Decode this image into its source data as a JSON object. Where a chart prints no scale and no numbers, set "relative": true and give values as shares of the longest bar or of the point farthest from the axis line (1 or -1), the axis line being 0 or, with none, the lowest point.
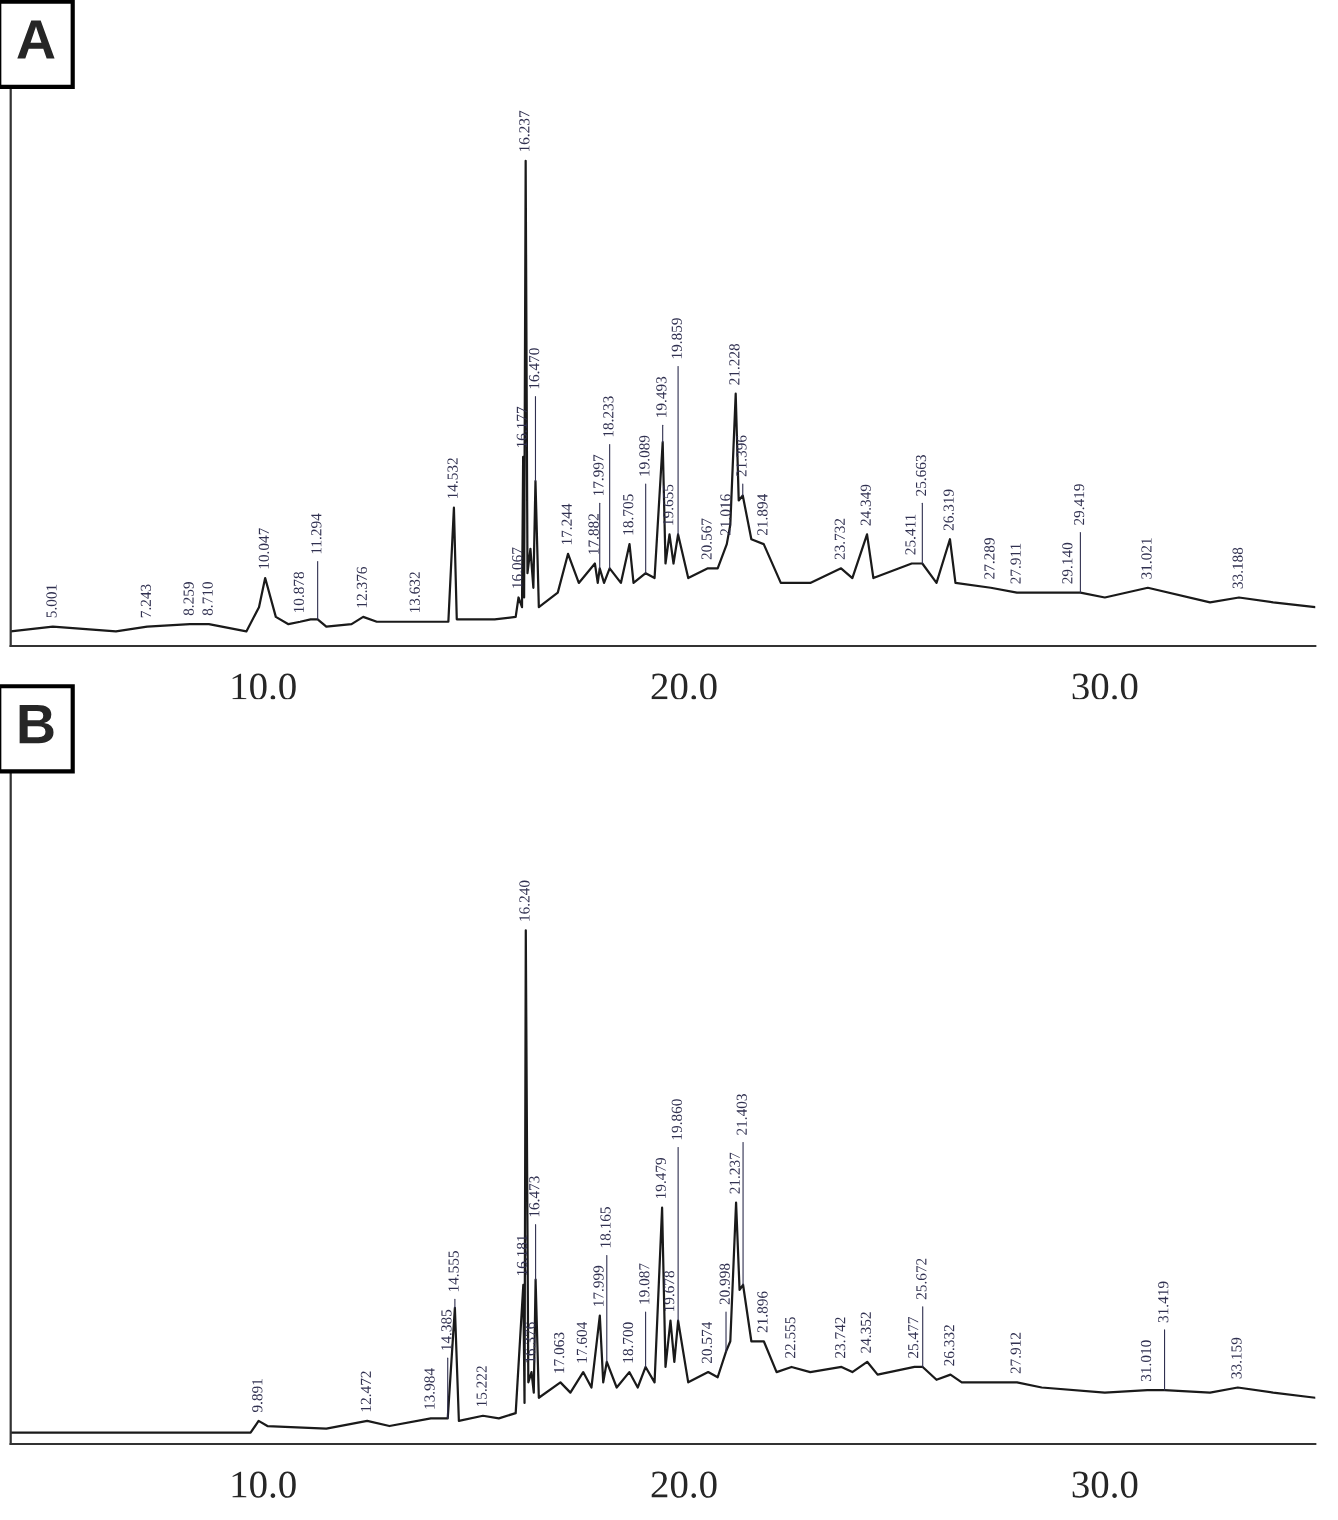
{
  "chart_data": [
    {
      "type": "line",
      "title": "A",
      "relative": true,
      "xlim": [
        4,
        35
      ],
      "xticks": [
        {
          "value": 10,
          "label": "10.0"
        },
        {
          "value": 20,
          "label": "20.0"
        },
        {
          "value": 30,
          "label": "30.0"
        }
      ],
      "series": [
        {
          "color": "#1a1a1a",
          "x": [
            4.0,
            5.001,
            6.5,
            7.243,
            8.259,
            8.71,
            9.6,
            9.9,
            10.047,
            10.3,
            10.6,
            10.878,
            11.127,
            11.294,
            11.5,
            12.1,
            12.376,
            12.7,
            13.632,
            14.4,
            14.532,
            14.6,
            15.5,
            16.0,
            16.067,
            16.15,
            16.177,
            16.2,
            16.237,
            16.28,
            16.35,
            16.42,
            16.47,
            16.55,
            17.0,
            17.244,
            17.5,
            17.882,
            17.95,
            17.997,
            18.1,
            18.233,
            18.5,
            18.705,
            18.8,
            19.089,
            19.3,
            19.493,
            19.56,
            19.655,
            19.75,
            19.859,
            20.1,
            20.567,
            20.8,
            21.016,
            21.1,
            21.228,
            21.3,
            21.396,
            21.6,
            21.894,
            22.3,
            23.0,
            23.732,
            24.0,
            24.349,
            24.5,
            25.411,
            25.663,
            26.0,
            26.319,
            26.45,
            27.289,
            27.911,
            28.5,
            29.14,
            29.419,
            30.0,
            31.021,
            32.5,
            33.188,
            34.0,
            35.0
          ],
          "values": [
            0.03,
            0.04,
            0.03,
            0.04,
            0.045,
            0.045,
            0.03,
            0.08,
            0.14,
            0.06,
            0.045,
            0.05,
            0.055,
            0.055,
            0.04,
            0.045,
            0.06,
            0.05,
            0.05,
            0.05,
            0.285,
            0.055,
            0.055,
            0.06,
            0.1,
            0.08,
            0.39,
            0.1,
            1.0,
            0.15,
            0.2,
            0.12,
            0.34,
            0.08,
            0.11,
            0.19,
            0.13,
            0.17,
            0.13,
            0.16,
            0.13,
            0.16,
            0.13,
            0.21,
            0.13,
            0.15,
            0.14,
            0.42,
            0.17,
            0.23,
            0.17,
            0.23,
            0.14,
            0.16,
            0.16,
            0.21,
            0.25,
            0.52,
            0.3,
            0.31,
            0.22,
            0.21,
            0.13,
            0.13,
            0.16,
            0.14,
            0.23,
            0.14,
            0.17,
            0.17,
            0.13,
            0.22,
            0.13,
            0.12,
            0.11,
            0.11,
            0.11,
            0.11,
            0.1,
            0.12,
            0.09,
            0.1,
            0.09,
            0.08
          ]
        }
      ],
      "annotations": [
        {
          "text": "5.001",
          "x": 5.001,
          "y": 0.04
        },
        {
          "text": "7.243",
          "x": 7.243,
          "y": 0.04
        },
        {
          "text": "8.259",
          "x": 8.259,
          "y": 0.045
        },
        {
          "text": "8.710",
          "x": 8.71,
          "y": 0.045
        },
        {
          "text": "10.047",
          "x": 10.047,
          "y": 0.14
        },
        {
          "text": "10.878",
          "x": 10.878,
          "y": 0.05
        },
        {
          "text": "11.294",
          "x": 11.294,
          "y": 0.055
        },
        {
          "text": "12.376",
          "x": 12.376,
          "y": 0.06
        },
        {
          "text": "13.632",
          "x": 13.632,
          "y": 0.05
        },
        {
          "text": "14.532",
          "x": 14.532,
          "y": 0.285
        },
        {
          "text": "16.067",
          "x": 16.067,
          "y": 0.1
        },
        {
          "text": "16.177",
          "x": 16.177,
          "y": 0.39
        },
        {
          "text": "16.237",
          "x": 16.237,
          "y": 1.0
        },
        {
          "text": "16.470",
          "x": 16.47,
          "y": 0.34
        },
        {
          "text": "17.244",
          "x": 17.244,
          "y": 0.19
        },
        {
          "text": "17.882",
          "x": 17.882,
          "y": 0.17
        },
        {
          "text": "17.997",
          "x": 17.997,
          "y": 0.16
        },
        {
          "text": "18.233",
          "x": 18.233,
          "y": 0.16
        },
        {
          "text": "18.705",
          "x": 18.705,
          "y": 0.21
        },
        {
          "text": "19.089",
          "x": 19.089,
          "y": 0.15
        },
        {
          "text": "19.493",
          "x": 19.493,
          "y": 0.42
        },
        {
          "text": "19.655",
          "x": 19.655,
          "y": 0.23
        },
        {
          "text": "19.859",
          "x": 19.859,
          "y": 0.23
        },
        {
          "text": "20.567",
          "x": 20.567,
          "y": 0.16
        },
        {
          "text": "21.016",
          "x": 21.016,
          "y": 0.21
        },
        {
          "text": "21.228",
          "x": 21.228,
          "y": 0.52
        },
        {
          "text": "21.396",
          "x": 21.396,
          "y": 0.31
        },
        {
          "text": "21.894",
          "x": 21.894,
          "y": 0.21
        },
        {
          "text": "23.732",
          "x": 23.732,
          "y": 0.16
        },
        {
          "text": "24.349",
          "x": 24.349,
          "y": 0.23
        },
        {
          "text": "25.411",
          "x": 25.411,
          "y": 0.17
        },
        {
          "text": "25.663",
          "x": 25.663,
          "y": 0.17
        },
        {
          "text": "26.319",
          "x": 26.319,
          "y": 0.22
        },
        {
          "text": "27.289",
          "x": 27.289,
          "y": 0.12
        },
        {
          "text": "27.911",
          "x": 27.911,
          "y": 0.11
        },
        {
          "text": "29.140",
          "x": 29.14,
          "y": 0.11
        },
        {
          "text": "29.419",
          "x": 29.419,
          "y": 0.11
        },
        {
          "text": "31.021",
          "x": 31.021,
          "y": 0.12
        },
        {
          "text": "33.188",
          "x": 33.188,
          "y": 0.1
        }
      ]
    },
    {
      "type": "line",
      "title": "B",
      "relative": true,
      "xlim": [
        4,
        35
      ],
      "xticks": [
        {
          "value": 10,
          "label": "10.0"
        },
        {
          "value": 20,
          "label": "20.0"
        },
        {
          "value": 30,
          "label": "30.0"
        }
      ],
      "series": [
        {
          "color": "#1a1a1a",
          "x": [
            4.0,
            9.7,
            9.891,
            10.1,
            11.5,
            12.472,
            13.0,
            13.984,
            14.385,
            14.555,
            14.65,
            15.222,
            15.6,
            16.0,
            16.181,
            16.21,
            16.24,
            16.3,
            16.376,
            16.43,
            16.473,
            16.55,
            17.063,
            17.3,
            17.604,
            17.8,
            17.999,
            18.08,
            18.165,
            18.4,
            18.7,
            18.9,
            19.087,
            19.3,
            19.479,
            19.56,
            19.678,
            19.77,
            19.86,
            20.1,
            20.574,
            20.8,
            20.998,
            21.1,
            21.237,
            21.32,
            21.403,
            21.6,
            21.896,
            22.2,
            22.555,
            23.0,
            23.742,
            24.0,
            24.352,
            24.6,
            25.477,
            25.672,
            26.0,
            26.332,
            26.6,
            27.912,
            28.5,
            30.0,
            31.01,
            31.419,
            32.5,
            33.159,
            34.0,
            35.0
          ],
          "values": [
            0.022,
            0.022,
            0.045,
            0.035,
            0.03,
            0.045,
            0.035,
            0.05,
            0.05,
            0.265,
            0.045,
            0.055,
            0.05,
            0.06,
            0.31,
            0.08,
            1.0,
            0.12,
            0.14,
            0.1,
            0.32,
            0.09,
            0.12,
            0.1,
            0.14,
            0.11,
            0.25,
            0.12,
            0.16,
            0.11,
            0.14,
            0.11,
            0.15,
            0.12,
            0.46,
            0.15,
            0.24,
            0.16,
            0.24,
            0.12,
            0.14,
            0.13,
            0.18,
            0.2,
            0.47,
            0.3,
            0.31,
            0.2,
            0.2,
            0.14,
            0.15,
            0.14,
            0.15,
            0.14,
            0.16,
            0.135,
            0.15,
            0.15,
            0.125,
            0.135,
            0.12,
            0.12,
            0.11,
            0.1,
            0.105,
            0.105,
            0.1,
            0.11,
            0.1,
            0.09
          ]
        }
      ],
      "annotations": [
        {
          "text": "9.891",
          "x": 9.891,
          "y": 0.045
        },
        {
          "text": "12.472",
          "x": 12.472,
          "y": 0.045
        },
        {
          "text": "13.984",
          "x": 13.984,
          "y": 0.05
        },
        {
          "text": "14.385",
          "x": 14.385,
          "y": 0.05
        },
        {
          "text": "14.555",
          "x": 14.555,
          "y": 0.265
        },
        {
          "text": "15.222",
          "x": 15.222,
          "y": 0.055
        },
        {
          "text": "16.181",
          "x": 16.181,
          "y": 0.31
        },
        {
          "text": "16.240",
          "x": 16.24,
          "y": 1.0
        },
        {
          "text": "16.376",
          "x": 16.376,
          "y": 0.14
        },
        {
          "text": "16.473",
          "x": 16.473,
          "y": 0.32
        },
        {
          "text": "17.063",
          "x": 17.063,
          "y": 0.12
        },
        {
          "text": "17.604",
          "x": 17.604,
          "y": 0.14
        },
        {
          "text": "17.999",
          "x": 17.999,
          "y": 0.25
        },
        {
          "text": "18.165",
          "x": 18.165,
          "y": 0.16
        },
        {
          "text": "18.700",
          "x": 18.7,
          "y": 0.14
        },
        {
          "text": "19.087",
          "x": 19.087,
          "y": 0.15
        },
        {
          "text": "19.479",
          "x": 19.479,
          "y": 0.46
        },
        {
          "text": "19.678",
          "x": 19.678,
          "y": 0.24
        },
        {
          "text": "19.860",
          "x": 19.86,
          "y": 0.24
        },
        {
          "text": "20.574",
          "x": 20.574,
          "y": 0.14
        },
        {
          "text": "20.998",
          "x": 20.998,
          "y": 0.18
        },
        {
          "text": "21.237",
          "x": 21.237,
          "y": 0.47
        },
        {
          "text": "21.403",
          "x": 21.403,
          "y": 0.31
        },
        {
          "text": "21.896",
          "x": 21.896,
          "y": 0.2
        },
        {
          "text": "22.555",
          "x": 22.555,
          "y": 0.15
        },
        {
          "text": "23.742",
          "x": 23.742,
          "y": 0.15
        },
        {
          "text": "24.352",
          "x": 24.352,
          "y": 0.16
        },
        {
          "text": "25.477",
          "x": 25.477,
          "y": 0.15
        },
        {
          "text": "25.672",
          "x": 25.672,
          "y": 0.15
        },
        {
          "text": "26.332",
          "x": 26.332,
          "y": 0.135
        },
        {
          "text": "27.912",
          "x": 27.912,
          "y": 0.12
        },
        {
          "text": "31.010",
          "x": 31.01,
          "y": 0.105
        },
        {
          "text": "31.419",
          "x": 31.419,
          "y": 0.105
        },
        {
          "text": "33.159",
          "x": 33.159,
          "y": 0.11
        }
      ]
    }
  ]
}
